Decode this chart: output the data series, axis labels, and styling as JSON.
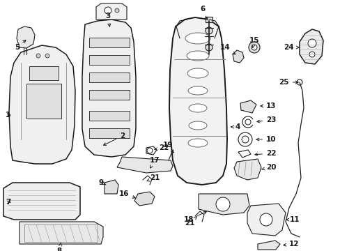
{
  "bg_color": "#ffffff",
  "line_color": "#1a1a1a",
  "label_fontsize": 7.5,
  "fig_width": 4.89,
  "fig_height": 3.6,
  "dpi": 100
}
